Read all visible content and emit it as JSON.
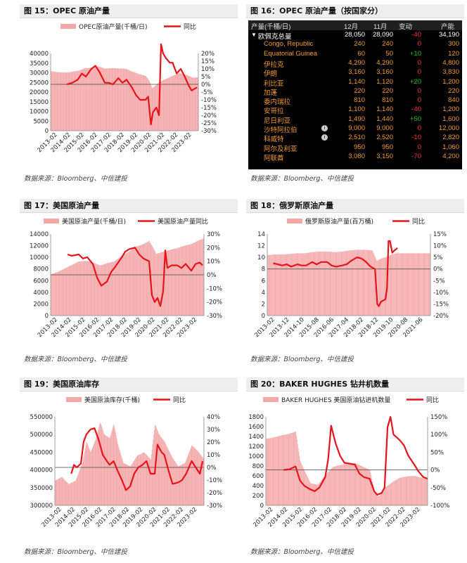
{
  "sources": {
    "text": "数据来源：Bloomberg、中信建投"
  },
  "fig15": {
    "title": "图 15：OPEC 原油产量",
    "legend_bar": "OPEC原油产量(千桶/日)",
    "legend_line": "同比"
  },
  "fig16": {
    "title": "图 16：OPEC 原油产量（按国家分）",
    "headers": {
      "name": "产量(千桶/日)",
      "dec": "12月",
      "nov": "11月",
      "chg": "变动",
      "cap": "产能"
    },
    "total": {
      "name": "欧佩克总量",
      "dec": "28,050",
      "nov": "28,090",
      "chg": "-40",
      "cap": "34,190"
    },
    "rows": [
      {
        "name": "Congo, Republic",
        "dec": "240",
        "nov": "240",
        "chg": "0",
        "cap": "300",
        "info": false
      },
      {
        "name": "Equatorial Guinea",
        "dec": "60",
        "nov": "50",
        "chg": "+10",
        "cap": "120",
        "info": false
      },
      {
        "name": "伊拉克",
        "dec": "4,290",
        "nov": "4,290",
        "chg": "0",
        "cap": "4,800",
        "info": false
      },
      {
        "name": "伊朗",
        "dec": "3,160",
        "nov": "3,160",
        "chg": "0",
        "cap": "3,830",
        "info": false
      },
      {
        "name": "利比亚",
        "dec": "1,140",
        "nov": "1,120",
        "chg": "+20",
        "cap": "1,200",
        "info": false
      },
      {
        "name": "加蓬",
        "dec": "220",
        "nov": "220",
        "chg": "0",
        "cap": "220",
        "info": false
      },
      {
        "name": "委内瑞拉",
        "dec": "810",
        "nov": "810",
        "chg": "0",
        "cap": "840",
        "info": false
      },
      {
        "name": "安哥拉",
        "dec": "1,100",
        "nov": "1,140",
        "chg": "-40",
        "cap": "1,200",
        "info": false
      },
      {
        "name": "尼日利亚",
        "dec": "1,490",
        "nov": "1,440",
        "chg": "+50",
        "cap": "1,600",
        "info": false
      },
      {
        "name": "沙特阿拉伯",
        "dec": "9,000",
        "nov": "9,000",
        "chg": "0",
        "cap": "12,000",
        "info": true
      },
      {
        "name": "科威特",
        "dec": "2,510",
        "nov": "2,520",
        "chg": "-10",
        "cap": "2,820",
        "info": true
      },
      {
        "name": "阿尔及利亚",
        "dec": "950",
        "nov": "950",
        "chg": "0",
        "cap": "1,060",
        "info": false
      },
      {
        "name": "阿联酋",
        "dec": "3,080",
        "nov": "3,150",
        "chg": "-70",
        "cap": "4,200",
        "info": false
      }
    ]
  },
  "fig17": {
    "title": "图 17：美国原油产量",
    "legend_bar": "美国原油产量(千桶/日)",
    "legend_line": "美国原油产量同比"
  },
  "fig18": {
    "title": "图 18：俄罗斯原油产量",
    "legend_bar": "俄罗斯原油产量(百万桶)",
    "legend_line": "同比"
  },
  "fig19": {
    "title": "图 19：美国原油库存",
    "legend_bar": "美国原油库存(千桶)",
    "legend_line": "同比"
  },
  "fig20": {
    "title": "图 20：BAKER HUGHES 钻井机数量",
    "legend_bar": "BAKER HUGHES 美国原油钻进机数量",
    "legend_line": "同比"
  },
  "colors": {
    "bar": "#f4a9a9",
    "line": "#e8131a",
    "grid": "#d0d0d0",
    "pos": "#20c020",
    "neg": "#ff3030",
    "orange": "#f39a2c"
  },
  "chart_data": [
    {
      "id": "fig15",
      "type": "bar+line",
      "x_ticks": [
        "2013-02",
        "2014-02",
        "2015-02",
        "2016-02",
        "2017-02",
        "2018-02",
        "2019-02",
        "2020-02",
        "2021-02",
        "2022-02",
        "2023-02"
      ],
      "ylim_left": [
        0,
        40000
      ],
      "yticks_left": [
        0,
        5000,
        10000,
        15000,
        20000,
        25000,
        30000,
        35000,
        40000
      ],
      "ylim_right": [
        -30,
        20
      ],
      "yticks_right": [
        -30,
        -25,
        -20,
        -15,
        -10,
        -5,
        0,
        5,
        10,
        15,
        20
      ],
      "right_unit": "%",
      "series": [
        {
          "name": "OPEC原油产量(千桶/日)",
          "kind": "bar",
          "x": [
            2013.0,
            2013.5,
            2014.0,
            2014.5,
            2015.0,
            2015.5,
            2016.0,
            2016.5,
            2017.0,
            2017.5,
            2018.0,
            2018.5,
            2019.0,
            2019.5,
            2020.0,
            2020.25,
            2020.5,
            2021.0,
            2021.5,
            2022.0,
            2022.5,
            2023.0,
            2023.5,
            2023.9
          ],
          "y": [
            30800,
            30300,
            30100,
            30400,
            31000,
            32300,
            32600,
            33300,
            32100,
            32400,
            32200,
            32100,
            30600,
            29300,
            28400,
            26000,
            22000,
            25200,
            26800,
            28400,
            29800,
            28900,
            27400,
            27700
          ]
        },
        {
          "name": "同比",
          "kind": "line",
          "x": [
            2014.2,
            2014.6,
            2015.0,
            2015.3,
            2015.6,
            2016.0,
            2016.3,
            2016.6,
            2017.0,
            2017.3,
            2017.6,
            2018.0,
            2018.3,
            2018.6,
            2019.0,
            2019.3,
            2019.6,
            2020.0,
            2020.2,
            2020.4,
            2020.55,
            2020.8,
            2021.0,
            2021.15,
            2021.3,
            2021.5,
            2021.8,
            2022.0,
            2022.3,
            2022.6,
            2022.9,
            2023.2,
            2023.4,
            2023.6,
            2023.8
          ],
          "y": [
            0,
            1,
            3,
            7,
            5,
            10,
            12,
            8,
            1,
            1,
            0,
            4,
            1,
            3,
            -2,
            -7,
            -10,
            -10,
            -8,
            -26,
            -18,
            -15,
            -20,
            26,
            20,
            17,
            14,
            14,
            7,
            10,
            5,
            -1,
            -4,
            -3,
            -2
          ]
        }
      ]
    },
    {
      "id": "fig17",
      "type": "bar+line",
      "x_ticks": [
        "2013-02",
        "2014-02",
        "2015-02",
        "2016-02",
        "2017-02",
        "2018-02",
        "2019-02",
        "2020-02",
        "2021-02",
        "2022-02",
        "2023-02"
      ],
      "ylim_left": [
        0,
        14000
      ],
      "yticks_left": [
        0,
        2000,
        4000,
        6000,
        8000,
        10000,
        12000,
        14000
      ],
      "ylim_right": [
        -30,
        30
      ],
      "yticks_right": [
        -30,
        -20,
        -10,
        0,
        10,
        20,
        30
      ],
      "right_unit": "%",
      "series": [
        {
          "name": "美国原油产量(千桶/日)",
          "kind": "bar",
          "x": [
            2013.0,
            2013.5,
            2014.0,
            2014.5,
            2015.0,
            2015.5,
            2016.0,
            2016.5,
            2017.0,
            2017.5,
            2018.0,
            2018.5,
            2019.0,
            2019.5,
            2020.0,
            2020.3,
            2020.5,
            2021.0,
            2021.5,
            2022.0,
            2022.5,
            2023.0,
            2023.5,
            2023.9
          ],
          "y": [
            7100,
            7500,
            8100,
            8700,
            9300,
            9400,
            9100,
            8600,
            9000,
            9300,
            10200,
            10900,
            11800,
            12200,
            12800,
            11500,
            10600,
            11000,
            11300,
            11600,
            12000,
            12300,
            12900,
            13300
          ]
        },
        {
          "name": "美国原油产量同比",
          "kind": "line",
          "x": [
            2014.2,
            2014.5,
            2015.0,
            2015.3,
            2015.6,
            2016.0,
            2016.3,
            2016.6,
            2017.0,
            2017.3,
            2017.6,
            2018.0,
            2018.3,
            2018.6,
            2019.0,
            2019.3,
            2019.6,
            2020.0,
            2020.2,
            2020.4,
            2020.6,
            2020.8,
            2021.0,
            2021.15,
            2021.3,
            2021.6,
            2022.0,
            2022.3,
            2022.6,
            2023.0,
            2023.3,
            2023.6,
            2023.8
          ],
          "y": [
            15,
            14,
            15,
            12,
            13,
            8,
            -2,
            -8,
            -5,
            2,
            6,
            12,
            17,
            19,
            20,
            15,
            12,
            10,
            -15,
            -20,
            -17,
            -23,
            -12,
            18,
            5,
            7,
            7,
            5,
            8,
            3,
            8,
            9,
            7
          ]
        }
      ]
    },
    {
      "id": "fig18",
      "type": "bar+line",
      "x_ticks": [
        "2013-02",
        "2013-12",
        "2014-10",
        "2015-08",
        "2016-06",
        "2017-04",
        "2018-02",
        "2018-12",
        "2019-10",
        "2020-08",
        "2021-06"
      ],
      "ylim_left": [
        0,
        14
      ],
      "yticks_left": [
        0,
        2,
        4,
        6,
        8,
        10,
        12,
        14
      ],
      "ylim_right": [
        -20,
        15
      ],
      "yticks_right": [
        -20,
        -15,
        -10,
        -5,
        0,
        5,
        10,
        15
      ],
      "right_unit": "%",
      "series": [
        {
          "name": "俄罗斯原油产量(百万桶)",
          "kind": "bar",
          "x": [
            2013.0,
            2013.5,
            2014.0,
            2014.5,
            2015.0,
            2015.5,
            2016.0,
            2016.5,
            2017.0,
            2017.5,
            2018.0,
            2018.5,
            2019.0,
            2019.5,
            2020.0,
            2020.3,
            2020.6,
            2021.0,
            2021.3,
            2021.6
          ],
          "y": [
            10.4,
            10.5,
            10.5,
            10.6,
            10.7,
            10.7,
            10.9,
            11.0,
            11.0,
            10.9,
            11.0,
            11.2,
            11.3,
            11.3,
            11.2,
            9.4,
            9.8,
            10.1,
            10.5,
            10.7
          ]
        },
        {
          "name": "同比",
          "kind": "line",
          "x": [
            2013.4,
            2013.7,
            2014.0,
            2014.3,
            2014.6,
            2015.0,
            2015.3,
            2015.6,
            2016.0,
            2016.3,
            2016.6,
            2017.0,
            2017.3,
            2017.6,
            2018.0,
            2018.3,
            2018.6,
            2019.0,
            2019.3,
            2019.6,
            2019.9,
            2020.2,
            2020.35,
            2020.45,
            2020.6,
            2020.9,
            2021.0,
            2021.1,
            2021.2,
            2021.35,
            2021.5,
            2021.7
          ],
          "y": [
            2.5,
            2,
            1.5,
            2,
            1,
            2,
            1.5,
            1.5,
            3,
            2,
            3,
            3,
            1.5,
            1,
            1.5,
            2,
            3.5,
            5,
            4.5,
            3,
            1,
            0,
            -15,
            -16,
            -14,
            -13,
            -8,
            12,
            12,
            7,
            8,
            9
          ]
        }
      ]
    },
    {
      "id": "fig19",
      "type": "bar+line",
      "x_ticks": [
        "2013-02",
        "2014-02",
        "2015-02",
        "2016-02",
        "2017-02",
        "2018-02",
        "2019-02",
        "2020-02",
        "2021-02",
        "2022-02",
        "2023-02"
      ],
      "ylim_left": [
        300000,
        550000
      ],
      "yticks_left": [
        300000,
        350000,
        400000,
        450000,
        500000,
        550000
      ],
      "ylim_right": [
        -30,
        40
      ],
      "yticks_right": [
        -30,
        -20,
        -10,
        0,
        10,
        20,
        30,
        40
      ],
      "right_unit": "%",
      "series": [
        {
          "name": "美国原油库存(千桶)",
          "kind": "bar",
          "x": [
            2013.0,
            2013.5,
            2014.0,
            2014.5,
            2015.0,
            2015.3,
            2015.6,
            2016.0,
            2016.3,
            2016.6,
            2017.0,
            2017.3,
            2017.6,
            2018.0,
            2018.5,
            2019.0,
            2019.5,
            2020.0,
            2020.3,
            2020.6,
            2021.0,
            2021.5,
            2022.0,
            2022.5,
            2023.0,
            2023.5,
            2023.9
          ],
          "y": [
            370000,
            380000,
            360000,
            370000,
            420000,
            480000,
            450000,
            490000,
            535000,
            500000,
            490000,
            530000,
            470000,
            420000,
            410000,
            440000,
            450000,
            430000,
            530000,
            500000,
            480000,
            440000,
            410000,
            420000,
            470000,
            450000,
            430000
          ]
        },
        {
          "name": "同比",
          "kind": "line",
          "x": [
            2014.2,
            2014.4,
            2014.6,
            2014.9,
            2015.1,
            2015.3,
            2015.6,
            2015.9,
            2016.2,
            2016.5,
            2016.8,
            2017.0,
            2017.3,
            2017.6,
            2017.9,
            2018.2,
            2018.5,
            2018.8,
            2019.1,
            2019.4,
            2019.7,
            2020.0,
            2020.3,
            2020.5,
            2020.8,
            2021.0,
            2021.3,
            2021.6,
            2022.0,
            2022.3,
            2022.6,
            2023.0,
            2023.3,
            2023.6,
            2023.8
          ],
          "y": [
            -5,
            2,
            0,
            3,
            20,
            26,
            30,
            31,
            22,
            10,
            5,
            2,
            5,
            -3,
            -10,
            -18,
            -15,
            -5,
            0,
            2,
            5,
            -5,
            -5,
            18,
            12,
            10,
            -2,
            -13,
            -12,
            -10,
            -5,
            5,
            0,
            -5,
            5
          ]
        }
      ]
    },
    {
      "id": "fig20",
      "type": "bar+line",
      "x_ticks": [
        "2013-02",
        "2014-02",
        "2015-02",
        "2016-02",
        "2017-02",
        "2018-02",
        "2019-02",
        "2020-02",
        "2021-02",
        "2022-02",
        "2023-02"
      ],
      "ylim_left": [
        0,
        1800
      ],
      "yticks_left": [
        0,
        200,
        400,
        600,
        800,
        1000,
        1200,
        1400,
        1600,
        1800
      ],
      "ylim_right": [
        -100,
        150
      ],
      "yticks_right": [
        -100,
        -50,
        0,
        50,
        100,
        150
      ],
      "right_unit": "%",
      "series": [
        {
          "name": "BAKER HUGHES 美国原油钻进机数量",
          "kind": "bar",
          "x": [
            2013.0,
            2013.5,
            2014.0,
            2014.5,
            2015.0,
            2015.3,
            2015.6,
            2016.0,
            2016.5,
            2017.0,
            2017.5,
            2018.0,
            2018.5,
            2019.0,
            2019.5,
            2020.0,
            2020.3,
            2020.6,
            2021.0,
            2021.5,
            2022.0,
            2022.5,
            2023.0,
            2023.5,
            2023.9
          ],
          "y": [
            1350,
            1380,
            1420,
            1450,
            1500,
            900,
            700,
            450,
            420,
            620,
            780,
            820,
            850,
            860,
            790,
            720,
            300,
            180,
            360,
            470,
            560,
            590,
            600,
            560,
            520
          ]
        },
        {
          "name": "同比",
          "kind": "line",
          "x": [
            2014.2,
            2014.6,
            2015.0,
            2015.3,
            2015.6,
            2016.0,
            2016.3,
            2016.6,
            2017.0,
            2017.2,
            2017.4,
            2017.7,
            2018.0,
            2018.3,
            2018.6,
            2019.0,
            2019.3,
            2019.6,
            2020.0,
            2020.3,
            2020.5,
            2020.8,
            2021.0,
            2021.2,
            2021.4,
            2021.6,
            2022.0,
            2022.3,
            2022.6,
            2023.0,
            2023.3,
            2023.6,
            2023.9
          ],
          "y": [
            0,
            2,
            10,
            -30,
            -45,
            -55,
            -60,
            -50,
            -20,
            30,
            125,
            75,
            40,
            20,
            18,
            15,
            -10,
            -20,
            -25,
            -60,
            -70,
            -65,
            -50,
            120,
            150,
            100,
            85,
            70,
            40,
            15,
            -5,
            -20,
            -25
          ]
        }
      ]
    }
  ]
}
